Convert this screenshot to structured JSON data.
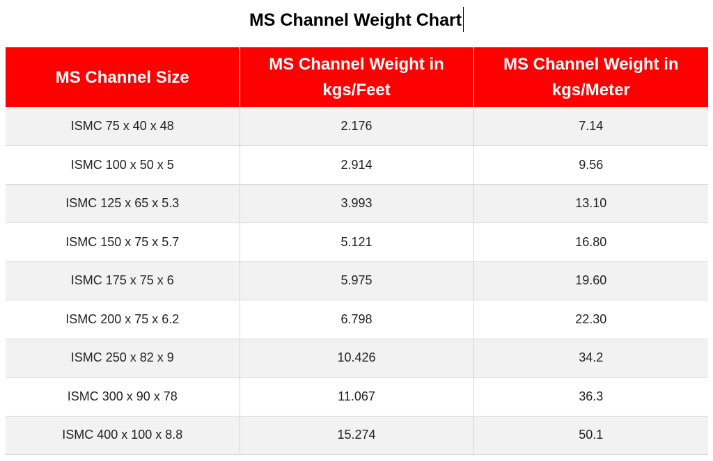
{
  "title": "MS Channel Weight Chart",
  "table": {
    "headers": [
      "MS Channel Size",
      "MS Channel Weight in kgs/Feet",
      "MS Channel Weight in kgs/Meter"
    ],
    "rows": [
      [
        "ISMC 75 x 40 x 48",
        "2.176",
        "7.14"
      ],
      [
        "ISMC 100 x 50 x 5",
        "2.914",
        "9.56"
      ],
      [
        "ISMC 125 x 65 x 5.3",
        "3.993",
        "13.10"
      ],
      [
        "ISMC 150 x 75 x 5.7",
        "5.121",
        "16.80"
      ],
      [
        "ISMC 175 x 75 x 6",
        "5.975",
        "19.60"
      ],
      [
        "ISMC 200 x 75 x 6.2",
        "6.798",
        "22.30"
      ],
      [
        "ISMC 250 x 82 x 9",
        "10.426",
        "34.2"
      ],
      [
        "ISMC 300 x 90 x 78",
        "11.067",
        "36.3"
      ],
      [
        "ISMC 400 x 100 x 8.8",
        "15.274",
        "50.1"
      ]
    ]
  },
  "colors": {
    "header_background": "#ff0000",
    "header_text": "#ffffff",
    "row_stripe": "#f2f2f2",
    "grid_line": "#d6d6d6"
  }
}
